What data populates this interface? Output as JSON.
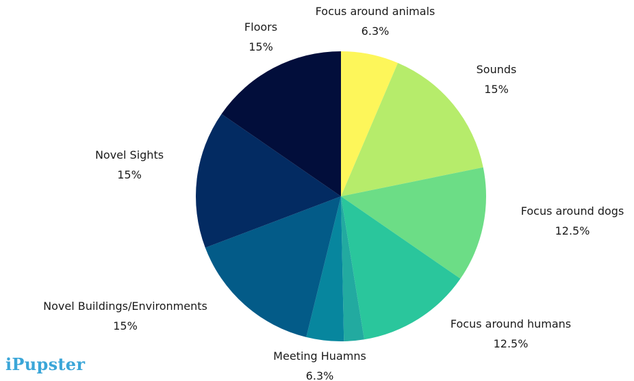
{
  "chart_data": {
    "type": "pie",
    "categories": [
      "Focus around animals",
      "Sounds",
      "Focus around dogs",
      "Focus around humans",
      "Meeting Huamns",
      "Novel Buildings/Environments",
      "Novel Sights",
      "Floors"
    ],
    "values": [
      6.3,
      15,
      12.5,
      12.5,
      6.3,
      15,
      15,
      15
    ],
    "value_labels": [
      "6.3%",
      "15%",
      "12.5%",
      "12.5%",
      "6.3%",
      "15%",
      "15%",
      "15%"
    ],
    "colors": [
      "#fdf65a",
      "#b6ec6b",
      "#6cdd86",
      "#2ac69c",
      "#22aaa0",
      "#07869e",
      "#065b86",
      "#032b62",
      "#020e3b"
    ],
    "start_angle_deg": 0,
    "direction": "clockwise"
  },
  "logo": {
    "text": "iPupster",
    "color": "#3ba6d8"
  }
}
